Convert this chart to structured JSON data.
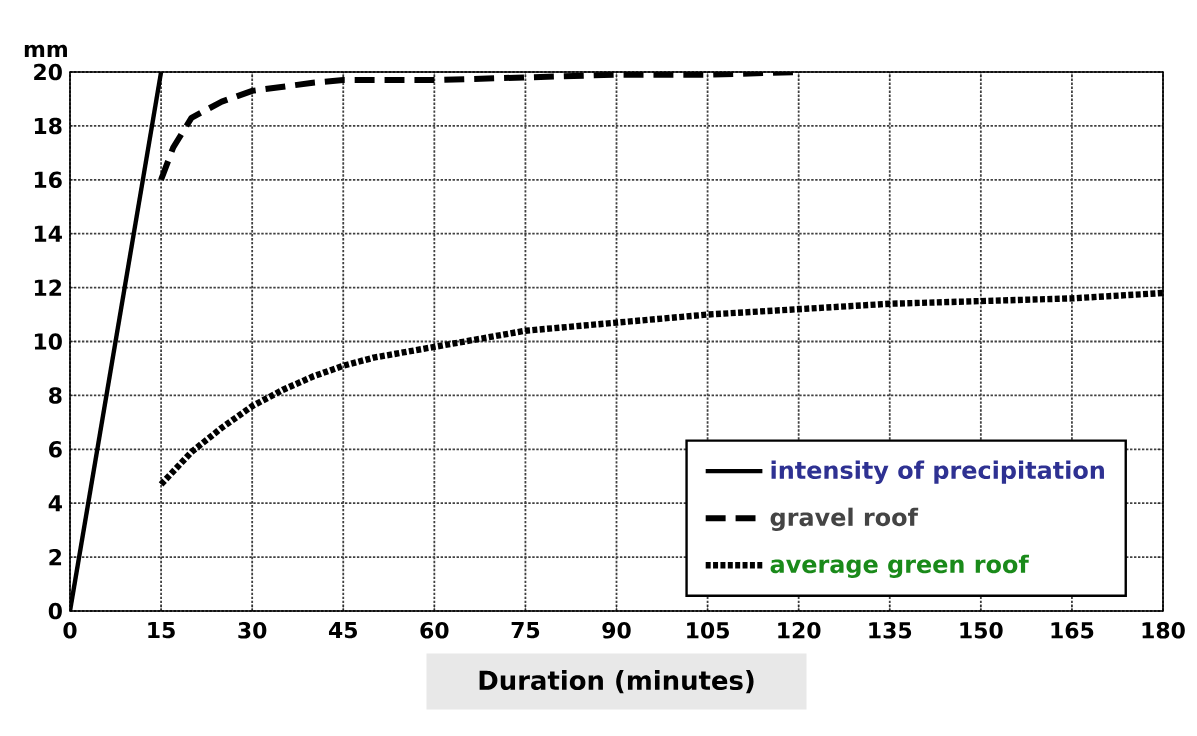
{
  "chart_data": {
    "type": "line",
    "ylabel": "mm",
    "xlabel": "Duration (minutes)",
    "xlim": [
      0,
      180
    ],
    "xticks": [
      0,
      15,
      30,
      45,
      60,
      75,
      90,
      105,
      120,
      135,
      150,
      165,
      180
    ],
    "ylim": [
      0,
      20
    ],
    "yticks": [
      0,
      2,
      4,
      6,
      8,
      10,
      12,
      14,
      16,
      18,
      20
    ],
    "grid": true,
    "legend": "bottom right",
    "marker": "none",
    "series": [
      {
        "name": "intensity of precipitation",
        "color": "#000000",
        "line_style": "solid",
        "x": [
          0,
          15
        ],
        "values": [
          0,
          20
        ]
      },
      {
        "name": "gravel roof",
        "color": "#000000",
        "line_style": "dashed",
        "x": [
          15,
          17,
          20,
          25,
          30,
          40,
          45,
          60,
          75,
          90,
          105,
          120
        ],
        "values": [
          16,
          17.2,
          18.3,
          18.9,
          19.3,
          19.6,
          19.7,
          19.7,
          19.8,
          19.9,
          19.9,
          20
        ]
      },
      {
        "name": "average green roof",
        "color": "#000000",
        "line_style": "dotted",
        "x": [
          15,
          20,
          25,
          30,
          35,
          40,
          45,
          50,
          60,
          75,
          90,
          105,
          120,
          135,
          150,
          165,
          180
        ],
        "values": [
          4.7,
          5.9,
          6.8,
          7.6,
          8.2,
          8.7,
          9.1,
          9.4,
          9.8,
          10.4,
          10.7,
          11.0,
          11.2,
          11.4,
          11.5,
          11.6,
          11.8
        ]
      }
    ]
  }
}
